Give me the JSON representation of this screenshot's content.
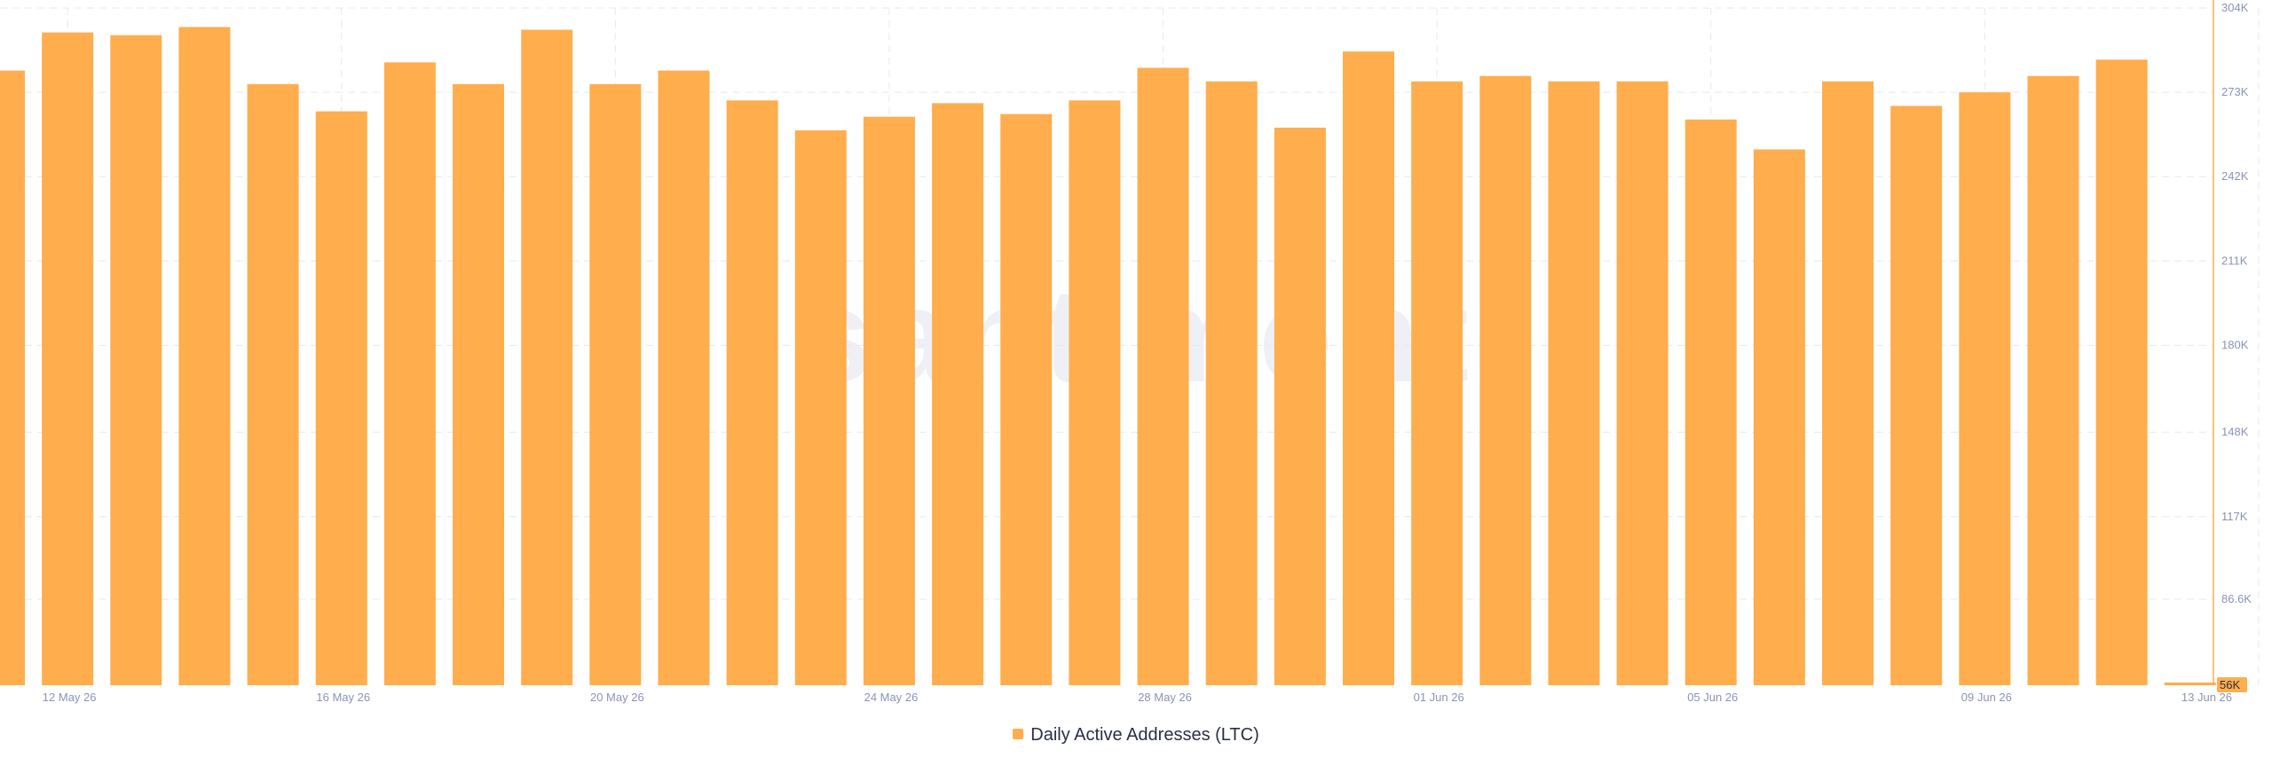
{
  "chart_data": {
    "type": "bar",
    "title": "",
    "watermark": "santiment",
    "series": [
      {
        "name": "Daily Active Addresses (LTC)",
        "color": "#ffad4d",
        "values": [
          281000,
          295000,
          294000,
          297000,
          276000,
          266000,
          284000,
          276000,
          296000,
          276000,
          281000,
          270000,
          259000,
          264000,
          269000,
          265000,
          270000,
          282000,
          277000,
          260000,
          288000,
          277000,
          279000,
          277000,
          277000,
          263000,
          252000,
          277000,
          268000,
          273000,
          279000,
          285000,
          56000
        ]
      }
    ],
    "x": [
      "11 May 26",
      "12 May 26",
      "13 May 26",
      "14 May 26",
      "15 May 26",
      "16 May 26",
      "17 May 26",
      "18 May 26",
      "19 May 26",
      "20 May 26",
      "21 May 26",
      "22 May 26",
      "23 May 26",
      "24 May 26",
      "25 May 26",
      "26 May 26",
      "27 May 26",
      "28 May 26",
      "29 May 26",
      "30 May 26",
      "31 May 26",
      "01 Jun 26",
      "02 Jun 26",
      "03 Jun 26",
      "04 Jun 26",
      "05 Jun 26",
      "06 Jun 26",
      "07 Jun 26",
      "08 Jun 26",
      "09 Jun 26",
      "10 Jun 26",
      "11 Jun 26",
      "12 Jun 26"
    ],
    "x_tick_labels": [
      {
        "label": "12 May 26",
        "index": 1
      },
      {
        "label": "16 May 26",
        "index": 5
      },
      {
        "label": "20 May 26",
        "index": 9
      },
      {
        "label": "24 May 26",
        "index": 13
      },
      {
        "label": "28 May 26",
        "index": 17
      },
      {
        "label": "01 Jun 26",
        "index": 21
      },
      {
        "label": "05 Jun 26",
        "index": 25
      },
      {
        "label": "09 Jun 26",
        "index": 29
      },
      {
        "label": "13 Jun 26",
        "index": 33
      }
    ],
    "y_tick_labels": [
      "304K",
      "273K",
      "242K",
      "211K",
      "180K",
      "148K",
      "117K",
      "86.6K"
    ],
    "y_ticks": [
      304000,
      273000,
      242000,
      211000,
      180000,
      148000,
      117000,
      86600
    ],
    "current_value_label": "56K",
    "ylim": [
      55000,
      304000
    ],
    "grid": true,
    "legend_position": "bottom-center"
  }
}
